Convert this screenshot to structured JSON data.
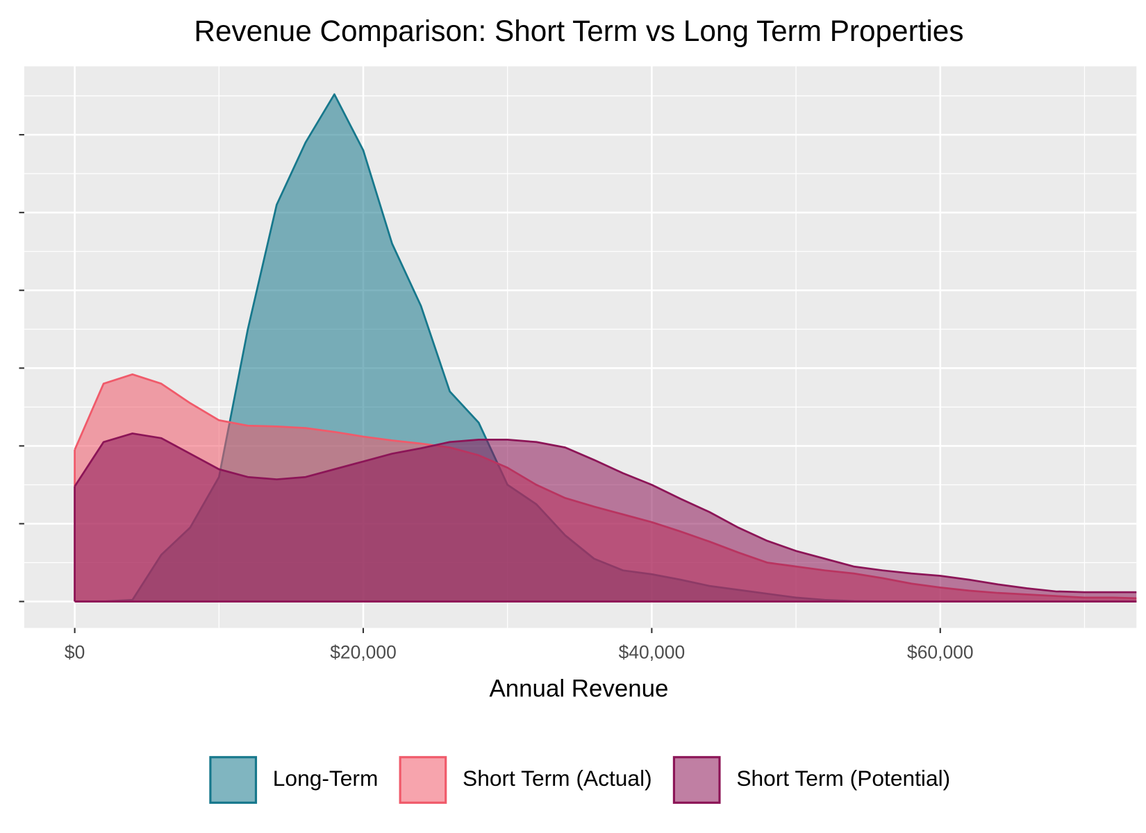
{
  "chart_data": {
    "type": "density",
    "title": "Revenue Comparison: Short Term vs Long Term Properties",
    "x_label": "Annual Revenue",
    "x": [
      0,
      2000,
      4000,
      6000,
      8000,
      10000,
      12000,
      14000,
      16000,
      18000,
      20000,
      22000,
      24000,
      26000,
      28000,
      30000,
      32000,
      34000,
      36000,
      38000,
      40000,
      42000,
      44000,
      46000,
      48000,
      50000,
      52000,
      54000,
      56000,
      58000,
      60000,
      62000,
      64000,
      66000,
      68000,
      70000,
      72000,
      74000
    ],
    "series": [
      {
        "name": "Long-Term",
        "color": "#17788c",
        "values": [
          0,
          0,
          2e-07,
          6e-06,
          9.5e-06,
          1.6e-05,
          3.5e-05,
          5.1e-05,
          5.9e-05,
          6.52e-05,
          5.8e-05,
          4.6e-05,
          3.8e-05,
          2.7e-05,
          2.3e-05,
          1.5e-05,
          1.25e-05,
          8.5e-06,
          5.5e-06,
          4e-06,
          3.5e-06,
          2.8e-06,
          2e-06,
          1.5e-06,
          1e-06,
          5e-07,
          2e-07,
          5e-08,
          0,
          0,
          0,
          0,
          0,
          0,
          0,
          0,
          0,
          0
        ]
      },
      {
        "name": "Short Term (Actual)",
        "color": "#f05a6a",
        "values": [
          1.95e-05,
          2.8e-05,
          2.92e-05,
          2.8e-05,
          2.55e-05,
          2.33e-05,
          2.26e-05,
          2.25e-05,
          2.23e-05,
          2.18e-05,
          2.12e-05,
          2.07e-05,
          2.03e-05,
          1.98e-05,
          1.88e-05,
          1.72e-05,
          1.5e-05,
          1.33e-05,
          1.22e-05,
          1.12e-05,
          1.02e-05,
          9e-06,
          7.7e-06,
          6.3e-06,
          5e-06,
          4.5e-06,
          4e-06,
          3.6e-06,
          3e-06,
          2.3e-06,
          1.8e-06,
          1.4e-06,
          1.1e-06,
          9e-07,
          7e-07,
          5e-07,
          5e-07,
          4e-07
        ]
      },
      {
        "name": "Short Term (Potential)",
        "color": "#8c1557",
        "values": [
          1.48e-05,
          2.05e-05,
          2.16e-05,
          2.1e-05,
          1.9e-05,
          1.7e-05,
          1.6e-05,
          1.57e-05,
          1.6e-05,
          1.7e-05,
          1.8e-05,
          1.9e-05,
          1.97e-05,
          2.05e-05,
          2.08e-05,
          2.08e-05,
          2.05e-05,
          1.98e-05,
          1.82e-05,
          1.65e-05,
          1.5e-05,
          1.32e-05,
          1.15e-05,
          9.5e-06,
          7.8e-06,
          6.5e-06,
          5.5e-06,
          4.5e-06,
          4e-06,
          3.6e-06,
          3.3e-06,
          2.8e-06,
          2.2e-06,
          1.7e-06,
          1.3e-06,
          1.2e-06,
          1.2e-06,
          1.2e-06
        ]
      }
    ],
    "fill_opacity": 0.55,
    "xlim": [
      -3500,
      73600
    ],
    "ylim": [
      -3.4e-06,
      6.88e-05
    ],
    "xticks": [
      {
        "value": 0,
        "label": "$0"
      },
      {
        "value": 20000,
        "label": "$20,000"
      },
      {
        "value": 40000,
        "label": "$40,000"
      },
      {
        "value": 60000,
        "label": "$60,000"
      }
    ],
    "yticks": [
      0,
      1e-05,
      2e-05,
      3e-05,
      4e-05,
      5e-05,
      6e-05
    ],
    "grid": true,
    "legend": "bottom"
  }
}
